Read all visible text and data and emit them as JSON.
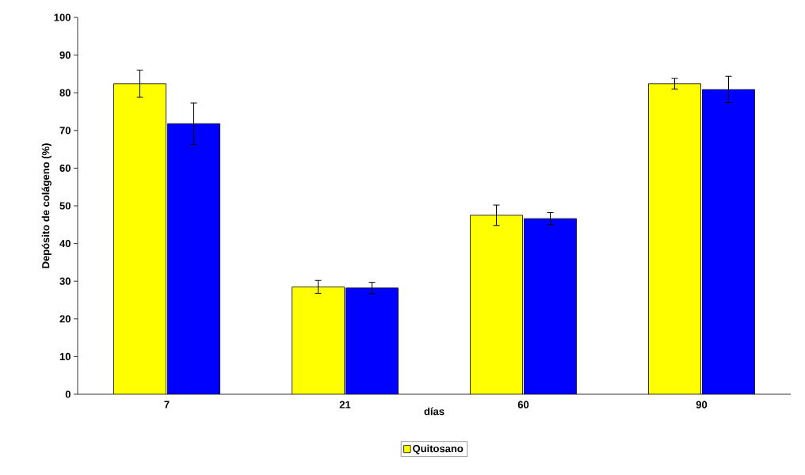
{
  "chart_data": {
    "type": "bar",
    "xlabel": "días",
    "ylabel": "Depósito de colágeno (%)",
    "categories": [
      "7",
      "21",
      "60",
      "90"
    ],
    "series": [
      {
        "name": "Quitosano",
        "color": "#ffff00",
        "values": [
          82.4,
          28.5,
          47.5,
          82.4
        ],
        "errors": [
          3.6,
          1.7,
          2.7,
          1.4
        ]
      },
      {
        "color": "#0000ff",
        "values": [
          71.8,
          28.2,
          46.6,
          80.9
        ],
        "errors": [
          5.5,
          1.5,
          1.6,
          3.5
        ]
      }
    ],
    "ylim": [
      0,
      100
    ],
    "yticks": [
      0,
      10,
      20,
      30,
      40,
      50,
      60,
      70,
      80,
      90,
      100
    ],
    "grid": false,
    "legend": "bottom"
  }
}
